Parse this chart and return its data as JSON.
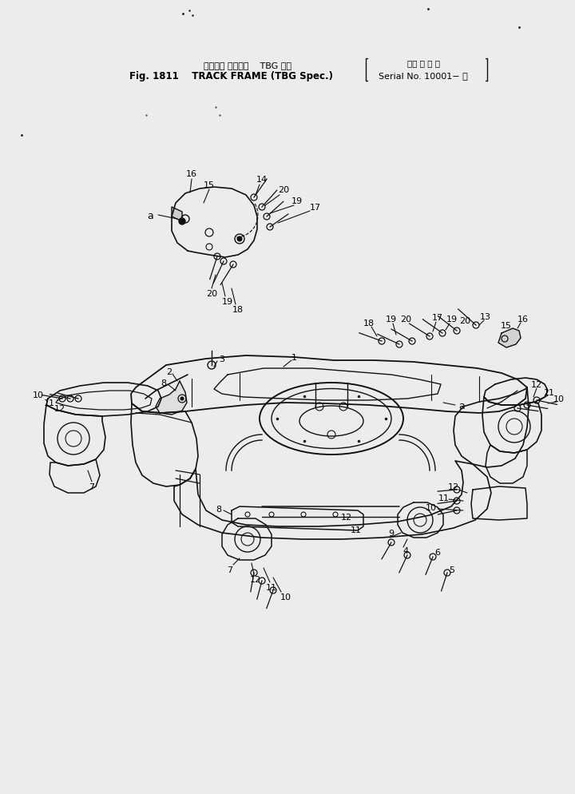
{
  "bg_color": "#eeecea",
  "line_color": "#111111",
  "text_color": "#000000",
  "fig_width": 7.2,
  "fig_height": 9.95,
  "dpi": 100,
  "title": {
    "jp_line": "トラック フレーム    TBG 仕様",
    "jp_right": "（適 用 号 機",
    "en_line": "Fig. 1811    TRACK FRAME (TBG Spec.)",
    "en_right": "Serial No. 10001− ）"
  }
}
